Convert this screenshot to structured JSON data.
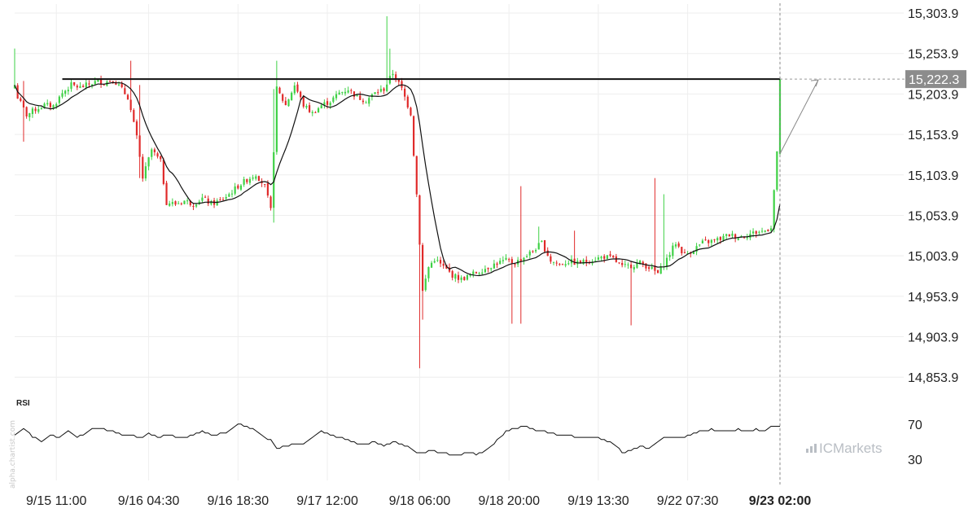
{
  "chart_data": {
    "type": "candlestick",
    "y_ticks": [
      "15,303.9",
      "15,253.9",
      "15,203.9",
      "15,153.9",
      "15,103.9",
      "15,053.9",
      "15,003.9",
      "14,953.9",
      "14,903.9",
      "14,853.9"
    ],
    "y_tick_values": [
      15303.9,
      15253.9,
      15203.9,
      15153.9,
      15103.9,
      15053.9,
      15003.9,
      14953.9,
      14903.9,
      14853.9
    ],
    "ylim": [
      14835,
      15310
    ],
    "x_ticks": [
      {
        "label": "9/15 11:00",
        "index": 14,
        "bold": false
      },
      {
        "label": "9/16 04:30",
        "index": 45,
        "bold": false
      },
      {
        "label": "9/16 18:30",
        "index": 75,
        "bold": false
      },
      {
        "label": "9/17 12:00",
        "index": 105,
        "bold": false
      },
      {
        "label": "9/18 06:00",
        "index": 136,
        "bold": false
      },
      {
        "label": "9/18 20:00",
        "index": 166,
        "bold": false
      },
      {
        "label": "9/19 13:30",
        "index": 196,
        "bold": false
      },
      {
        "label": "9/22 07:30",
        "index": 226,
        "bold": false
      },
      {
        "label": "9/23 02:00",
        "index": 257,
        "bold": true
      }
    ],
    "resistance_level": 15222.3,
    "current_price_label": "15,222.3",
    "bar_count": 258,
    "anchors": [
      [
        0,
        15215
      ],
      [
        1,
        15200
      ],
      [
        4,
        15178
      ],
      [
        7,
        15185
      ],
      [
        10,
        15190
      ],
      [
        13,
        15189
      ],
      [
        16,
        15205
      ],
      [
        19,
        15215
      ],
      [
        22,
        15212
      ],
      [
        25,
        15216
      ],
      [
        28,
        15220
      ],
      [
        30,
        15218
      ],
      [
        33,
        15222
      ],
      [
        35,
        15214
      ],
      [
        38,
        15200
      ],
      [
        41,
        15150
      ],
      [
        43,
        15100
      ],
      [
        46,
        15135
      ],
      [
        49,
        15120
      ],
      [
        51,
        15070
      ],
      [
        54,
        15068
      ],
      [
        57,
        15072
      ],
      [
        60,
        15068
      ],
      [
        63,
        15075
      ],
      [
        66,
        15068
      ],
      [
        69,
        15072
      ],
      [
        72,
        15080
      ],
      [
        75,
        15090
      ],
      [
        78,
        15098
      ],
      [
        81,
        15105
      ],
      [
        84,
        15090
      ],
      [
        86,
        15060
      ],
      [
        88,
        15210
      ],
      [
        91,
        15190
      ],
      [
        94,
        15215
      ],
      [
        97,
        15190
      ],
      [
        100,
        15180
      ],
      [
        103,
        15190
      ],
      [
        106,
        15195
      ],
      [
        109,
        15205
      ],
      [
        112,
        15210
      ],
      [
        115,
        15200
      ],
      [
        118,
        15196
      ],
      [
        121,
        15205
      ],
      [
        124,
        15210
      ],
      [
        127,
        15230
      ],
      [
        130,
        15210
      ],
      [
        133,
        15180
      ],
      [
        135,
        15080
      ],
      [
        137,
        14960
      ],
      [
        139,
        14990
      ],
      [
        141,
        15000
      ],
      [
        144,
        14990
      ],
      [
        147,
        14980
      ],
      [
        150,
        14975
      ],
      [
        153,
        14980
      ],
      [
        156,
        14985
      ],
      [
        159,
        14990
      ],
      [
        162,
        14995
      ],
      [
        165,
        14998
      ],
      [
        168,
        14995
      ],
      [
        171,
        15002
      ],
      [
        174,
        15010
      ],
      [
        177,
        15020
      ],
      [
        180,
        14998
      ],
      [
        183,
        14993
      ],
      [
        186,
        14997
      ],
      [
        189,
        14995
      ],
      [
        192,
        14997
      ],
      [
        195,
        15000
      ],
      [
        198,
        15003
      ],
      [
        201,
        15000
      ],
      [
        204,
        14990
      ],
      [
        207,
        14992
      ],
      [
        210,
        14995
      ],
      [
        213,
        14990
      ],
      [
        216,
        14982
      ],
      [
        219,
        15000
      ],
      [
        222,
        15020
      ],
      [
        225,
        15005
      ],
      [
        228,
        15012
      ],
      [
        231,
        15020
      ],
      [
        234,
        15022
      ],
      [
        237,
        15025
      ],
      [
        240,
        15030
      ],
      [
        243,
        15027
      ],
      [
        246,
        15030
      ],
      [
        249,
        15033
      ],
      [
        252,
        15035
      ],
      [
        254,
        15040
      ],
      [
        256,
        15130
      ],
      [
        257,
        15222
      ]
    ],
    "spikes": [
      {
        "i": 0,
        "h": 15260
      },
      {
        "i": 3,
        "h": 15220,
        "l": 15145
      },
      {
        "i": 39,
        "h": 15245
      },
      {
        "i": 42,
        "h": 15215,
        "l": 15100
      },
      {
        "i": 87,
        "h": 15210,
        "l": 15045
      },
      {
        "i": 88,
        "h": 15245
      },
      {
        "i": 125,
        "h": 15300
      },
      {
        "i": 126,
        "h": 15260
      },
      {
        "i": 136,
        "l": 14865
      },
      {
        "i": 137,
        "l": 14925
      },
      {
        "i": 170,
        "h": 15090,
        "l": 14920
      },
      {
        "i": 167,
        "l": 14920
      },
      {
        "i": 176,
        "h": 15040
      },
      {
        "i": 188,
        "h": 15035
      },
      {
        "i": 207,
        "l": 14918
      },
      {
        "i": 215,
        "h": 15100
      },
      {
        "i": 218,
        "h": 15080
      },
      {
        "i": 217,
        "l": 14990
      }
    ],
    "rsi": {
      "label": "RSI",
      "levels": [
        "70",
        "30"
      ],
      "level_values": [
        70,
        30
      ],
      "ylim": [
        20,
        80
      ],
      "anchors": [
        [
          0,
          58
        ],
        [
          3,
          66
        ],
        [
          6,
          56
        ],
        [
          9,
          50
        ],
        [
          12,
          57
        ],
        [
          15,
          55
        ],
        [
          18,
          62
        ],
        [
          21,
          55
        ],
        [
          24,
          60
        ],
        [
          27,
          66
        ],
        [
          30,
          64
        ],
        [
          33,
          62
        ],
        [
          36,
          58
        ],
        [
          39,
          58
        ],
        [
          42,
          54
        ],
        [
          45,
          60
        ],
        [
          48,
          55
        ],
        [
          51,
          57
        ],
        [
          54,
          56
        ],
        [
          57,
          55
        ],
        [
          60,
          58
        ],
        [
          63,
          62
        ],
        [
          66,
          58
        ],
        [
          69,
          59
        ],
        [
          72,
          62
        ],
        [
          75,
          70
        ],
        [
          78,
          68
        ],
        [
          81,
          62
        ],
        [
          84,
          55
        ],
        [
          86,
          52
        ],
        [
          88,
          42
        ],
        [
          91,
          45
        ],
        [
          94,
          48
        ],
        [
          97,
          48
        ],
        [
          100,
          56
        ],
        [
          103,
          62
        ],
        [
          106,
          58
        ],
        [
          109,
          55
        ],
        [
          112,
          52
        ],
        [
          115,
          48
        ],
        [
          118,
          48
        ],
        [
          121,
          50
        ],
        [
          124,
          46
        ],
        [
          127,
          50
        ],
        [
          130,
          48
        ],
        [
          133,
          42
        ],
        [
          135,
          38
        ],
        [
          137,
          38
        ],
        [
          140,
          40
        ],
        [
          143,
          38
        ],
        [
          146,
          36
        ],
        [
          149,
          35
        ],
        [
          152,
          37
        ],
        [
          155,
          36
        ],
        [
          158,
          40
        ],
        [
          161,
          48
        ],
        [
          163,
          55
        ],
        [
          165,
          62
        ],
        [
          168,
          65
        ],
        [
          171,
          68
        ],
        [
          174,
          64
        ],
        [
          177,
          62
        ],
        [
          180,
          60
        ],
        [
          183,
          57
        ],
        [
          186,
          58
        ],
        [
          189,
          55
        ],
        [
          192,
          56
        ],
        [
          195,
          55
        ],
        [
          198,
          52
        ],
        [
          201,
          48
        ],
        [
          204,
          38
        ],
        [
          207,
          40
        ],
        [
          210,
          45
        ],
        [
          213,
          42
        ],
        [
          216,
          50
        ],
        [
          219,
          56
        ],
        [
          222,
          55
        ],
        [
          225,
          55
        ],
        [
          228,
          60
        ],
        [
          231,
          62
        ],
        [
          234,
          64
        ],
        [
          237,
          62
        ],
        [
          240,
          63
        ],
        [
          243,
          64
        ],
        [
          246,
          62
        ],
        [
          249,
          64
        ],
        [
          252,
          63
        ],
        [
          255,
          68
        ]
      ]
    }
  },
  "watermark": {
    "side_text": "alpha.chartist.com",
    "brand": "ICMarkets"
  },
  "colors": {
    "up": "#3ed145",
    "down": "#e02a2a",
    "ma": "#111111",
    "resistance": "#111111",
    "grid": "#eeeeee",
    "rsi_line": "#111111",
    "badge": "#8c8c8c",
    "brand_mark": "#b9bec4"
  }
}
